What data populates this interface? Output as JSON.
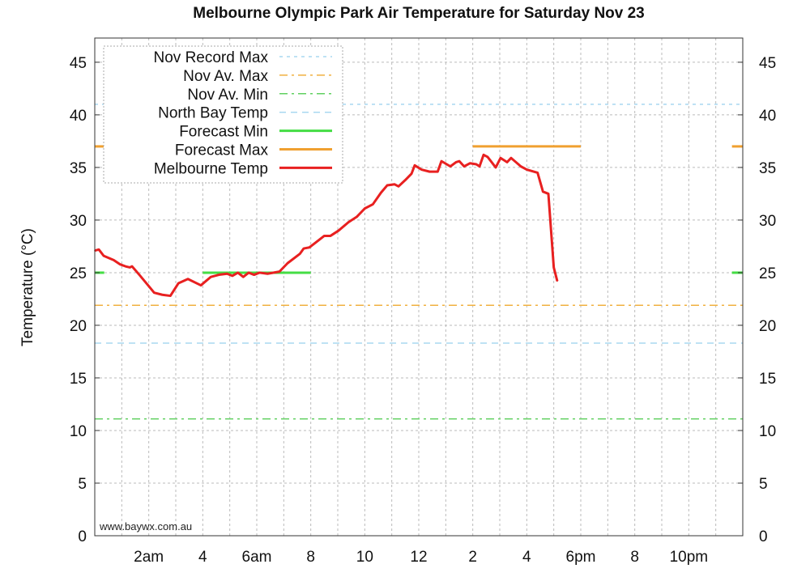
{
  "chart_data": {
    "type": "line",
    "title": "Melbourne Olympic Park Air Temperature  for Saturday Nov 23",
    "ylabel": "Temperature (°C)",
    "xlabel": "",
    "ylim": [
      0,
      47.3
    ],
    "xlim": [
      0,
      24
    ],
    "grid": true,
    "legend_placement": "top-left",
    "y_ticks": [
      0,
      5,
      10,
      15,
      20,
      25,
      30,
      35,
      40,
      45
    ],
    "x_ticks": [
      {
        "hour": 2,
        "label": "2am"
      },
      {
        "hour": 4,
        "label": "4"
      },
      {
        "hour": 6,
        "label": "6am"
      },
      {
        "hour": 8,
        "label": "8"
      },
      {
        "hour": 10,
        "label": "10"
      },
      {
        "hour": 12,
        "label": "12"
      },
      {
        "hour": 14,
        "label": "2"
      },
      {
        "hour": 16,
        "label": "4"
      },
      {
        "hour": 18,
        "label": "6pm"
      },
      {
        "hour": 20,
        "label": "8"
      },
      {
        "hour": 22,
        "label": "10pm"
      }
    ],
    "watermark": "www.baywx.com.au",
    "series": [
      {
        "name": "Nov Record Max",
        "color": "#a8d8f0",
        "dash": "dotted",
        "value": 41.0
      },
      {
        "name": "Nov Av. Max",
        "color": "#f0b040",
        "dash": "dashdot",
        "value": 21.9
      },
      {
        "name": "Nov Av. Min",
        "color": "#60d060",
        "dash": "dashdot",
        "value": 11.1
      },
      {
        "name": "North Bay Temp",
        "color": "#a8d8f0",
        "dash": "dashed",
        "value": 18.3
      },
      {
        "name": "Forecast Min",
        "color": "#44dd44",
        "dash": "solid",
        "segments": [
          [
            0,
            0.35,
            25
          ],
          [
            4,
            8,
            25
          ],
          [
            23.6,
            24,
            25
          ]
        ]
      },
      {
        "name": "Forecast Max",
        "color": "#f0a030",
        "dash": "solid",
        "segments": [
          [
            0,
            0.35,
            37
          ],
          [
            14,
            18,
            37
          ],
          [
            23.6,
            24,
            37
          ]
        ]
      },
      {
        "name": "Melbourne Temp",
        "color": "#e82020",
        "dash": "solid",
        "x": [
          0,
          0.15,
          0.33,
          0.7,
          0.93,
          1.14,
          1.3,
          1.38,
          1.65,
          2.04,
          2.2,
          2.5,
          2.8,
          3.1,
          3.45,
          3.93,
          4.3,
          4.6,
          4.9,
          5.1,
          5.3,
          5.5,
          5.7,
          5.9,
          6.1,
          6.4,
          6.84,
          7.14,
          7.6,
          7.74,
          7.95,
          8.25,
          8.5,
          8.73,
          9.03,
          9.4,
          9.7,
          10.0,
          10.3,
          10.6,
          10.83,
          11.1,
          11.25,
          11.5,
          11.73,
          11.85,
          12.1,
          12.4,
          12.7,
          12.84,
          13.17,
          13.38,
          13.5,
          13.68,
          13.9,
          14.13,
          14.25,
          14.4,
          14.55,
          14.85,
          15.03,
          15.27,
          15.42,
          15.78,
          16.0,
          16.4,
          16.6,
          16.8,
          17.0,
          17.13
        ],
        "y": [
          27.1,
          27.2,
          26.6,
          26.2,
          25.8,
          25.6,
          25.5,
          25.6,
          24.8,
          23.6,
          23.1,
          22.9,
          22.8,
          24.0,
          24.4,
          23.8,
          24.6,
          24.8,
          24.9,
          24.7,
          25.0,
          24.6,
          25.0,
          24.8,
          25.0,
          24.9,
          25.1,
          25.9,
          26.8,
          27.3,
          27.4,
          28.0,
          28.5,
          28.5,
          29.0,
          29.8,
          30.3,
          31.1,
          31.5,
          32.6,
          33.3,
          33.4,
          33.2,
          33.8,
          34.4,
          35.2,
          34.8,
          34.6,
          34.6,
          35.6,
          35.1,
          35.5,
          35.6,
          35.1,
          35.4,
          35.3,
          35.1,
          36.2,
          36.0,
          35.0,
          35.9,
          35.5,
          35.9,
          35.1,
          34.8,
          34.5,
          32.7,
          32.5,
          25.5,
          24.2
        ]
      }
    ]
  }
}
